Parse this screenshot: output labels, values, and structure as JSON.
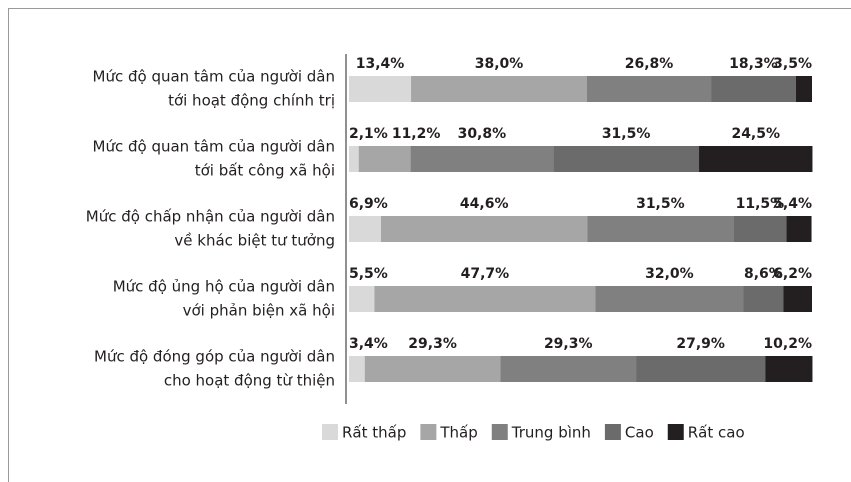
{
  "chart_data": {
    "type": "stacked-bar-horizontal",
    "categories": [
      [
        "Mức độ quan tâm của người dân",
        "tới hoạt động chính trị"
      ],
      [
        "Mức độ quan tâm của người dân",
        "tới bất công xã hội"
      ],
      [
        "Mức độ chấp nhận của người dân",
        "về khác biệt tư tưởng"
      ],
      [
        "Mức độ ủng hộ của người dân",
        "với phản biện xã hội"
      ],
      [
        "Mức độ đóng góp của người dân",
        "cho hoạt động từ thiện"
      ]
    ],
    "xlim": [
      0,
      100
    ],
    "legend": "bottom",
    "series": [
      {
        "name": "Rất thấp",
        "color": "#d9d9d9",
        "values": [
          13.4,
          2.1,
          6.9,
          5.5,
          3.4
        ],
        "value_labels": [
          "13,4%",
          "2,1%",
          "6,9%",
          "5,5%",
          "3,4%"
        ]
      },
      {
        "name": "Thấp",
        "color": "#a6a6a6",
        "values": [
          38.0,
          11.2,
          44.6,
          47.7,
          29.3
        ],
        "value_labels": [
          "38,0%",
          "11,2%",
          "44,6%",
          "47,7%",
          "29,3%"
        ]
      },
      {
        "name": "Trung bình",
        "color": "#808080",
        "values": [
          26.8,
          30.8,
          31.5,
          32.0,
          29.3
        ],
        "value_labels": [
          "26,8%",
          "30,8%",
          "31,5%",
          "32,0%",
          "29,3%"
        ]
      },
      {
        "name": "Cao",
        "color": "#6b6b6b",
        "values": [
          18.3,
          31.5,
          11.5,
          8.6,
          27.9
        ],
        "value_labels": [
          "18,3%",
          "31,5%",
          "11,5%",
          "8,6%",
          "27,9%"
        ]
      },
      {
        "name": "Rất cao",
        "color": "#231f20",
        "values": [
          3.5,
          24.5,
          5.4,
          6.2,
          10.2
        ],
        "value_labels": [
          "3,5%",
          "24,5%",
          "5,4%",
          "6,2%",
          "10,2%"
        ]
      }
    ]
  }
}
